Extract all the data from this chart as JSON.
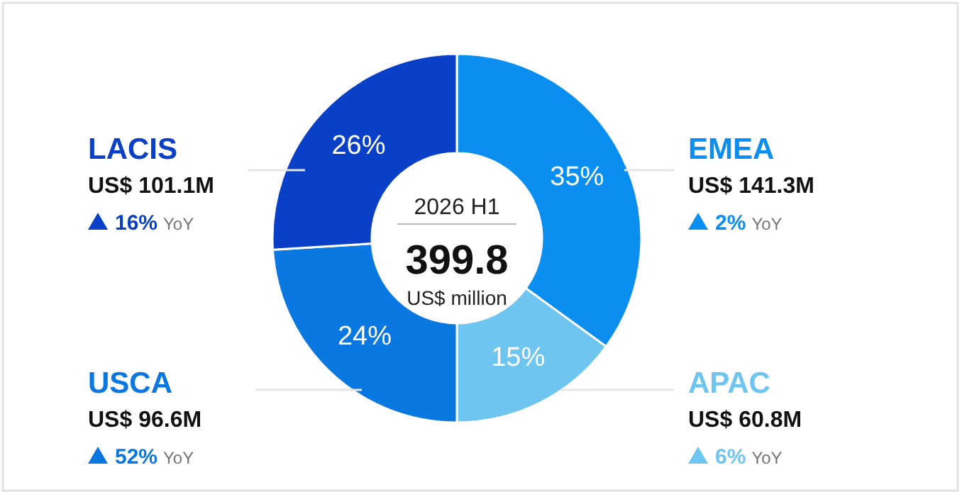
{
  "chart_data": {
    "type": "donut",
    "categories": [
      "EMEA",
      "APAC",
      "USCA",
      "LACIS"
    ],
    "values": [
      35,
      15,
      24,
      26
    ],
    "value_labels": [
      "35%",
      "15%",
      "24%",
      "26%"
    ],
    "colors": [
      "#0a8ef0",
      "#6ec6f0",
      "#0a78e0",
      "#0a3fc8"
    ],
    "annotations": [
      "2026 H1",
      "399.8",
      "US$ million",
      "US$ 141.3M",
      "2% YoY",
      "US$ 60.8M",
      "6% YoY",
      "US$ 96.6M",
      "52% YoY",
      "US$ 101.1M",
      "16% YoY"
    ]
  }
}
